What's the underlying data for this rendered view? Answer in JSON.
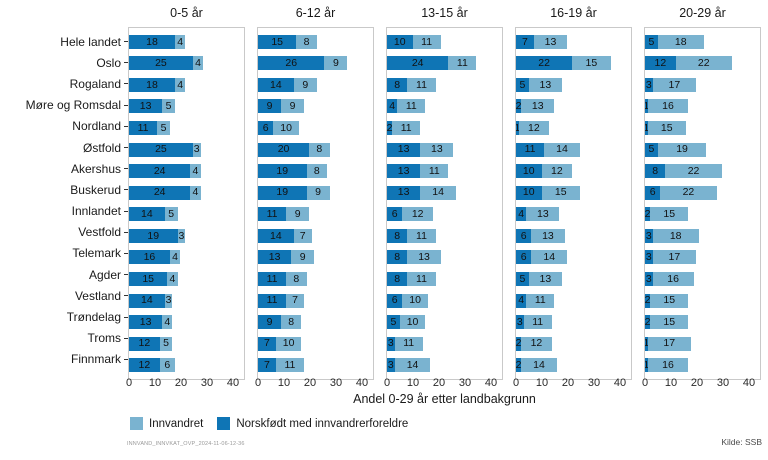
{
  "chart_data": {
    "type": "bar",
    "stacked": true,
    "orientation": "horizontal",
    "xlabel": "Andel 0-29 år etter landbakgrunn",
    "xlim": [
      0,
      45
    ],
    "xticks": [
      0,
      10,
      20,
      30,
      40
    ],
    "grid": false,
    "legend_position": "bottom",
    "categories": [
      "Hele landet",
      "Oslo",
      "Rogaland",
      "Møre og Romsdal",
      "Nordland",
      "Østfold",
      "Akershus",
      "Buskerud",
      "Innlandet",
      "Vestfold",
      "Telemark",
      "Agder",
      "Vestland",
      "Trøndelag",
      "Troms",
      "Finnmark"
    ],
    "stack_order": [
      "Norskfødt med innvandrerforeldre",
      "Innvandret"
    ],
    "panels": [
      {
        "title": "0-5 år",
        "norskfodt": [
          18,
          25,
          18,
          13,
          11,
          25,
          24,
          24,
          14,
          19,
          16,
          15,
          14,
          13,
          12,
          12
        ],
        "innvandret": [
          4,
          4,
          4,
          5,
          5,
          3,
          4,
          4,
          5,
          3,
          4,
          4,
          3,
          4,
          5,
          6
        ]
      },
      {
        "title": "6-12 år",
        "norskfodt": [
          15,
          26,
          14,
          9,
          6,
          20,
          19,
          19,
          11,
          14,
          13,
          11,
          11,
          9,
          7,
          7
        ],
        "innvandret": [
          8,
          9,
          9,
          9,
          10,
          8,
          8,
          9,
          9,
          7,
          9,
          8,
          7,
          8,
          10,
          11
        ]
      },
      {
        "title": "13-15 år",
        "norskfodt": [
          10,
          24,
          8,
          4,
          2,
          13,
          13,
          13,
          6,
          8,
          8,
          8,
          6,
          5,
          3,
          3
        ],
        "innvandret": [
          11,
          11,
          11,
          11,
          11,
          13,
          11,
          14,
          12,
          11,
          13,
          11,
          10,
          10,
          11,
          14
        ]
      },
      {
        "title": "16-19 år",
        "norskfodt": [
          7,
          22,
          5,
          2,
          1,
          11,
          10,
          10,
          4,
          6,
          6,
          5,
          4,
          3,
          2,
          2
        ],
        "innvandret": [
          13,
          15,
          13,
          13,
          12,
          14,
          12,
          15,
          13,
          13,
          14,
          13,
          11,
          11,
          12,
          14
        ]
      },
      {
        "title": "20-29 år",
        "norskfodt": [
          5,
          12,
          3,
          1,
          1,
          5,
          8,
          6,
          2,
          3,
          3,
          3,
          2,
          2,
          1,
          1
        ],
        "innvandret": [
          18,
          22,
          17,
          16,
          15,
          19,
          22,
          22,
          15,
          18,
          17,
          16,
          15,
          15,
          17,
          16
        ]
      }
    ],
    "legend": [
      {
        "label": "Innvandret",
        "color": "#7ab3d0"
      },
      {
        "label": "Norskfødt med innvandrerforeldre",
        "color": "#0f75b5"
      }
    ]
  },
  "colors": {
    "norskfodt_dark_blue": "#0f75b5",
    "innvandret_light_blue": "#7ab3d0",
    "panel_border": "#c9c9c9",
    "value_label": "#111111"
  },
  "footer": {
    "footnote": "INNVAND_INNVKAT_OVP_2024-11-06-12-36",
    "source": "Kilde: SSB"
  }
}
